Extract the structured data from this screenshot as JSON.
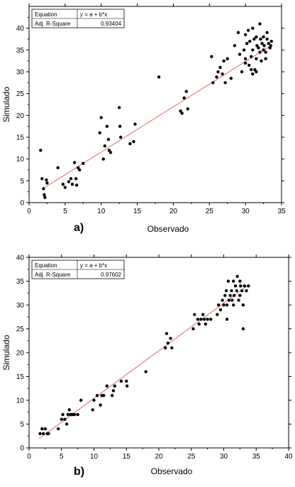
{
  "chart_data": [
    {
      "type": "scatter",
      "panel_label": "a)",
      "xlabel": "Observado",
      "ylabel": "Simulado",
      "xlim": [
        0,
        35
      ],
      "ylim": [
        0,
        45
      ],
      "xticks": [
        "0",
        "5",
        "10",
        "15",
        "20",
        "25",
        "30",
        "35"
      ],
      "yticks": [
        "0",
        "5",
        "10",
        "15",
        "20",
        "25",
        "30",
        "35",
        "40"
      ],
      "stats": {
        "eq_label": "Equation",
        "eq_value": "y = a + b*x",
        "r2_label": "Adj. R-Square",
        "r2_value": "0.93404"
      },
      "fit": {
        "x": [
          2.0,
          33.5
        ],
        "y": [
          3.3,
          36.0
        ],
        "color": "#e06666"
      },
      "points": {
        "x": [
          1.6,
          1.8,
          2.0,
          2.1,
          2.2,
          2.4,
          2.5,
          4.0,
          4.7,
          5.0,
          5.5,
          5.8,
          6.0,
          6.3,
          6.5,
          6.6,
          6.8,
          7.0,
          7.5,
          9.8,
          10.0,
          10.3,
          10.5,
          10.8,
          11.0,
          11.1,
          11.3,
          12.5,
          12.6,
          12.7,
          14.0,
          14.5,
          14.7,
          18.0,
          21.0,
          21.2,
          21.5,
          21.8,
          22.0,
          25.3,
          25.5,
          26.0,
          26.2,
          26.5,
          26.8,
          27.0,
          27.2,
          27.5,
          28.0,
          28.5,
          29.0,
          29.2,
          29.5,
          29.8,
          30.0,
          30.0,
          30.2,
          30.4,
          30.5,
          30.6,
          30.8,
          31.0,
          31.0,
          31.2,
          31.3,
          31.5,
          31.5,
          31.6,
          31.8,
          32.0,
          32.0,
          32.1,
          32.2,
          32.3,
          32.5,
          32.5,
          32.6,
          32.8,
          33.0,
          33.0,
          33.2,
          33.4,
          33.6,
          31.0,
          30.8,
          30.0,
          31.5,
          32.8,
          33.5
        ],
        "y": [
          12.0,
          5.5,
          3.2,
          1.8,
          1.2,
          5.2,
          4.5,
          8.0,
          4.2,
          3.5,
          4.8,
          5.5,
          4.2,
          9.2,
          5.5,
          4.0,
          8.0,
          7.5,
          9.0,
          16.0,
          19.5,
          10.0,
          13.0,
          17.5,
          14.5,
          12.0,
          11.5,
          21.8,
          17.5,
          15.0,
          13.5,
          14.0,
          18.0,
          28.8,
          21.0,
          20.5,
          24.0,
          25.5,
          21.5,
          33.5,
          27.5,
          28.8,
          30.0,
          31.0,
          29.5,
          32.5,
          27.5,
          33.0,
          28.5,
          36.0,
          39.0,
          34.0,
          30.0,
          35.0,
          38.5,
          32.0,
          36.5,
          39.5,
          31.5,
          37.0,
          33.5,
          40.0,
          35.0,
          37.5,
          30.5,
          38.0,
          33.0,
          36.0,
          35.5,
          34.5,
          41.0,
          37.5,
          32.5,
          36.5,
          38.0,
          35.0,
          36.0,
          33.0,
          37.5,
          39.0,
          36.5,
          35.5,
          37.0,
          29.5,
          30.5,
          33.0,
          30.0,
          34.5,
          36.0
        ]
      }
    },
    {
      "type": "scatter",
      "panel_label": "b)",
      "xlabel": "Observado",
      "ylabel": "Simulado",
      "xlim": [
        0,
        40
      ],
      "ylim": [
        0,
        40
      ],
      "xticks": [
        "0",
        "5",
        "10",
        "15",
        "20",
        "25",
        "30",
        "35",
        "40"
      ],
      "yticks": [
        "0",
        "5",
        "10",
        "15",
        "20",
        "25",
        "30",
        "35",
        "40"
      ],
      "stats": {
        "eq_label": "Equation",
        "eq_value": "y = a + b*x",
        "r2_label": "Adj. R-Square",
        "r2_value": "0.97602"
      },
      "fit": {
        "x": [
          1.6,
          33.8
        ],
        "y": [
          2.0,
          34.2
        ],
        "color": "#e06666"
      },
      "points": {
        "x": [
          1.7,
          2.0,
          2.2,
          2.5,
          2.8,
          3.0,
          4.5,
          5.0,
          5.2,
          5.5,
          5.8,
          6.0,
          6.2,
          6.4,
          6.6,
          6.8,
          7.0,
          7.5,
          8.0,
          9.8,
          10.0,
          10.5,
          11.0,
          11.2,
          11.5,
          12.0,
          12.8,
          13.0,
          13.2,
          14.2,
          15.0,
          15.1,
          18.0,
          21.0,
          21.2,
          21.4,
          21.8,
          22.0,
          25.3,
          25.5,
          26.0,
          26.2,
          26.5,
          26.8,
          27.0,
          27.2,
          27.5,
          28.0,
          29.0,
          29.2,
          29.5,
          29.8,
          30.0,
          30.2,
          30.4,
          30.5,
          30.7,
          30.8,
          31.0,
          31.2,
          31.3,
          31.5,
          31.6,
          31.8,
          32.0,
          32.1,
          32.3,
          32.5,
          32.6,
          32.8,
          33.0,
          33.2,
          33.5,
          33.8,
          33.0,
          30.5,
          31.5,
          32.5
        ],
        "y": [
          3.0,
          4.0,
          3.0,
          4.0,
          3.0,
          3.0,
          4.0,
          6.0,
          7.0,
          6.0,
          5.0,
          7.0,
          8.0,
          7.0,
          7.0,
          7.0,
          7.0,
          7.0,
          10.0,
          8.0,
          10.0,
          11.0,
          9.0,
          11.0,
          11.0,
          13.0,
          11.0,
          12.0,
          13.0,
          14.0,
          14.0,
          13.0,
          16.0,
          21.0,
          24.0,
          22.0,
          23.0,
          21.0,
          25.0,
          28.0,
          27.0,
          26.0,
          27.0,
          28.0,
          27.0,
          26.0,
          27.0,
          27.0,
          28.0,
          30.0,
          29.0,
          31.0,
          30.0,
          32.0,
          33.0,
          30.0,
          35.0,
          31.0,
          32.0,
          33.0,
          31.0,
          35.0,
          32.0,
          34.0,
          33.0,
          36.0,
          31.0,
          35.0,
          34.0,
          33.0,
          30.0,
          34.0,
          33.0,
          34.0,
          25.0,
          27.0,
          30.0,
          32.0
        ]
      }
    }
  ]
}
